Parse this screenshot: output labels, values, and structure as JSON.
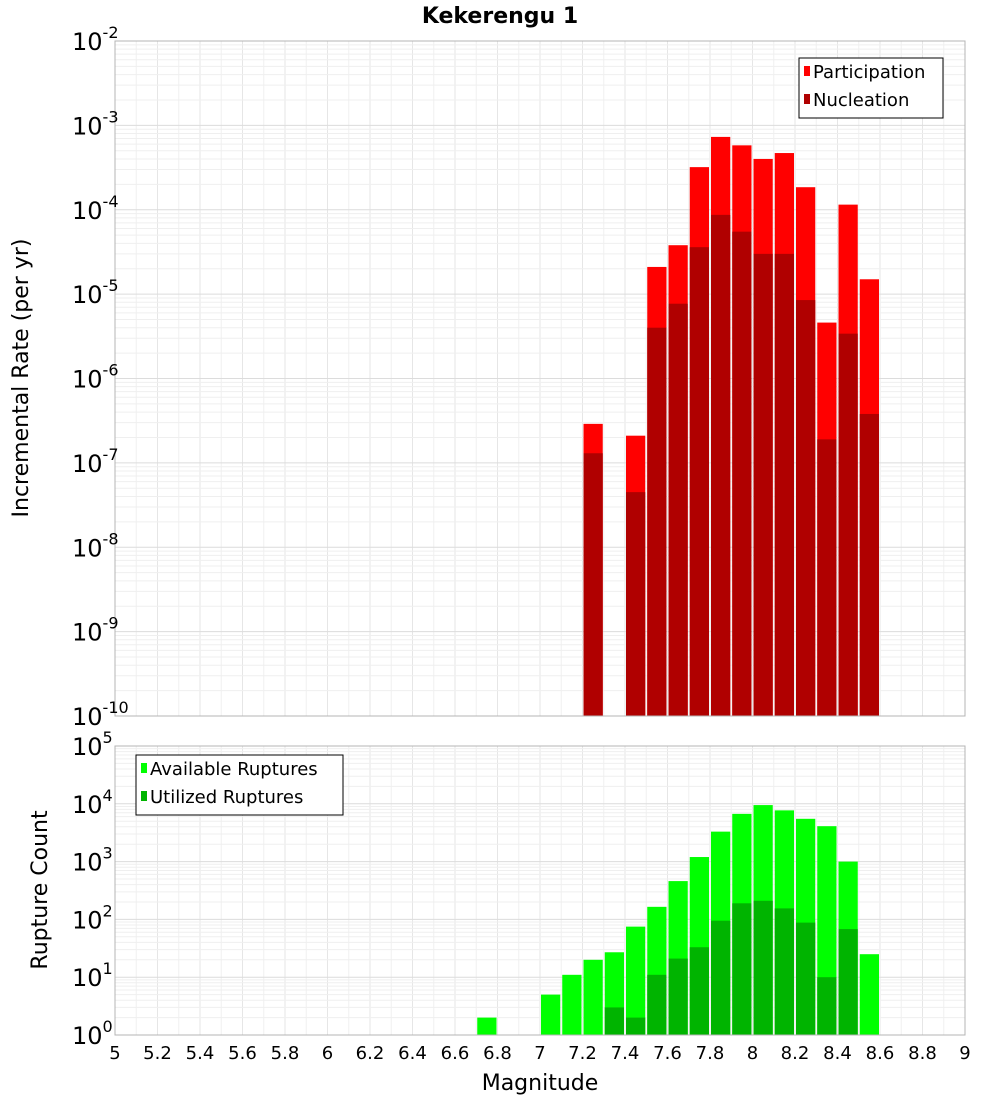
{
  "chart_data": [
    {
      "type": "bar",
      "title": "Kekerengu 1",
      "xlabel": "",
      "ylabel": "Incremental Rate (per yr)",
      "y_scale": "log",
      "ylim_exp": [
        -10,
        -2
      ],
      "xlim": [
        5,
        9
      ],
      "grid": true,
      "legend_position": "top-right",
      "x": [
        7.25,
        7.35,
        7.45,
        7.55,
        7.65,
        7.75,
        7.85,
        7.95,
        8.05,
        8.15,
        8.25,
        8.35,
        8.45,
        8.55
      ],
      "series": [
        {
          "name": "Participation",
          "color": "#ff0000",
          "values": [
            2.9e-07,
            null,
            2.1e-07,
            2.1e-05,
            3.8e-05,
            0.00032,
            0.00073,
            0.00058,
            0.0004,
            0.00047,
            0.000185,
            4.6e-06,
            0.000115,
            1.5e-05
          ]
        },
        {
          "name": "Nucleation",
          "color": "#b00000",
          "values": [
            1.3e-07,
            null,
            4.5e-08,
            4e-06,
            7.7e-06,
            3.6e-05,
            8.7e-05,
            5.5e-05,
            3e-05,
            3e-05,
            8.5e-06,
            1.9e-07,
            3.4e-06,
            3.8e-07
          ]
        }
      ]
    },
    {
      "type": "bar",
      "title": "",
      "xlabel": "Magnitude",
      "ylabel": "Rupture Count",
      "y_scale": "log",
      "ylim_exp": [
        0,
        5
      ],
      "xlim": [
        5,
        9
      ],
      "grid": true,
      "legend_position": "top-left",
      "x_ticks": [
        "5",
        "5.2",
        "5.4",
        "5.6",
        "5.8",
        "6",
        "6.2",
        "6.4",
        "6.6",
        "6.8",
        "7",
        "7.2",
        "7.4",
        "7.6",
        "7.8",
        "8",
        "8.2",
        "8.4",
        "8.6",
        "8.8",
        "9"
      ],
      "x": [
        6.75,
        6.95,
        7.05,
        7.15,
        7.25,
        7.35,
        7.45,
        7.55,
        7.65,
        7.75,
        7.85,
        7.95,
        8.05,
        8.15,
        8.25,
        8.35,
        8.45,
        8.55
      ],
      "series": [
        {
          "name": "Available Ruptures",
          "color": "#00ff00",
          "values": [
            2,
            1,
            5,
            11,
            20,
            27,
            75,
            165,
            460,
            1200,
            3300,
            6700,
            9500,
            7700,
            5500,
            4100,
            1000,
            25
          ]
        },
        {
          "name": "Utilized Ruptures",
          "color": "#00b400",
          "values": [
            null,
            null,
            null,
            null,
            1,
            3,
            2,
            11,
            21,
            33,
            95,
            190,
            210,
            155,
            88,
            10,
            68,
            1
          ]
        }
      ]
    }
  ]
}
